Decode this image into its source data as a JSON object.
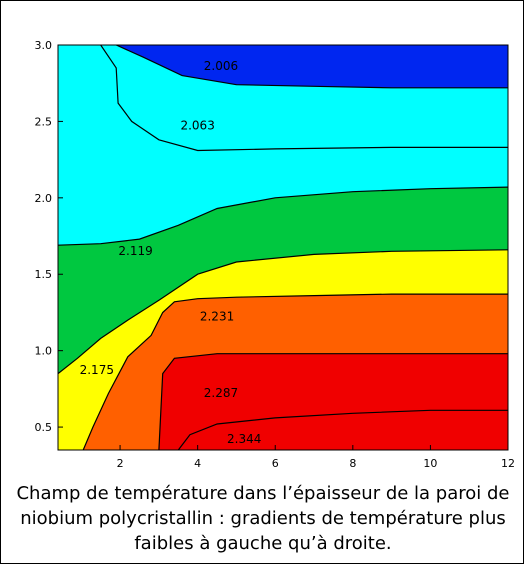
{
  "caption": "Champ de température dans l’épaisseur de la paroi de niobium polycristallin : gradients de température plus faibles à gauche qu’à droite.",
  "chart_data": {
    "type": "heatmap",
    "subtype": "filled-contour",
    "title": "",
    "xlabel": "",
    "ylabel": "",
    "xlim": [
      0.4,
      12
    ],
    "ylim": [
      0.35,
      3.0
    ],
    "x_ticks": [
      2,
      4,
      6,
      8,
      10,
      12
    ],
    "x_tick_labels": [
      "2",
      "4",
      "6",
      "8",
      "10",
      "12"
    ],
    "y_ticks": [
      0.5,
      1.0,
      1.5,
      2.0,
      2.5,
      3.0
    ],
    "y_tick_labels": [
      "0.5",
      "1.0",
      "1.5",
      "2.0",
      "2.5",
      "3.0"
    ],
    "grid": false,
    "legend": "none",
    "bands": [
      {
        "color": "#0026f0"
      },
      {
        "color": "#00ffff"
      },
      {
        "color": "#20e860"
      },
      {
        "color": "#00c840"
      },
      {
        "color": "#ffff00"
      },
      {
        "color": "#ff6000"
      },
      {
        "color": "#f00000"
      }
    ],
    "contours": [
      {
        "label": "2.006",
        "points": [
          [
            1.9,
            3.0
          ],
          [
            2.6,
            2.92
          ],
          [
            3.6,
            2.8
          ],
          [
            5.0,
            2.74
          ],
          [
            7.0,
            2.73
          ],
          [
            9.0,
            2.72
          ],
          [
            12.0,
            2.72
          ]
        ]
      },
      {
        "label": "2.063",
        "points": [
          [
            1.5,
            3.0
          ],
          [
            1.9,
            2.85
          ],
          [
            1.95,
            2.62
          ],
          [
            2.3,
            2.5
          ],
          [
            3.0,
            2.38
          ],
          [
            4.0,
            2.31
          ],
          [
            6.0,
            2.32
          ],
          [
            9.0,
            2.33
          ],
          [
            12.0,
            2.33
          ]
        ]
      },
      {
        "label": "2.119",
        "points": [
          [
            0.4,
            1.69
          ],
          [
            1.5,
            1.7
          ],
          [
            2.5,
            1.73
          ],
          [
            3.5,
            1.82
          ],
          [
            4.5,
            1.93
          ],
          [
            6.0,
            2.0
          ],
          [
            8.0,
            2.04
          ],
          [
            10.0,
            2.06
          ],
          [
            12.0,
            2.07
          ]
        ]
      },
      {
        "label": "2.175",
        "points": [
          [
            0.4,
            0.85
          ],
          [
            0.9,
            0.95
          ],
          [
            1.5,
            1.08
          ],
          [
            2.2,
            1.2
          ],
          [
            3.0,
            1.33
          ],
          [
            4.0,
            1.5
          ],
          [
            5.0,
            1.58
          ],
          [
            7.0,
            1.63
          ],
          [
            9.0,
            1.65
          ],
          [
            12.0,
            1.66
          ]
        ]
      },
      {
        "label": "2.231",
        "points": [
          [
            1.05,
            0.35
          ],
          [
            1.3,
            0.5
          ],
          [
            1.7,
            0.72
          ],
          [
            2.2,
            0.96
          ],
          [
            2.8,
            1.1
          ],
          [
            3.1,
            1.25
          ],
          [
            3.4,
            1.32
          ],
          [
            4.0,
            1.34
          ],
          [
            5.0,
            1.35
          ],
          [
            7.0,
            1.36
          ],
          [
            9.0,
            1.37
          ],
          [
            12.0,
            1.37
          ]
        ]
      },
      {
        "label": "2.287",
        "points": [
          [
            3.0,
            0.35
          ],
          [
            3.05,
            0.6
          ],
          [
            3.1,
            0.85
          ],
          [
            3.4,
            0.95
          ],
          [
            4.5,
            0.98
          ],
          [
            6.0,
            0.98
          ],
          [
            8.0,
            0.98
          ],
          [
            10.0,
            0.98
          ],
          [
            12.0,
            0.98
          ]
        ]
      },
      {
        "label": "2.344",
        "points": [
          [
            3.5,
            0.35
          ],
          [
            3.8,
            0.45
          ],
          [
            4.5,
            0.52
          ],
          [
            6.0,
            0.56
          ],
          [
            8.0,
            0.59
          ],
          [
            10.0,
            0.61
          ],
          [
            12.0,
            0.61
          ]
        ]
      }
    ]
  }
}
